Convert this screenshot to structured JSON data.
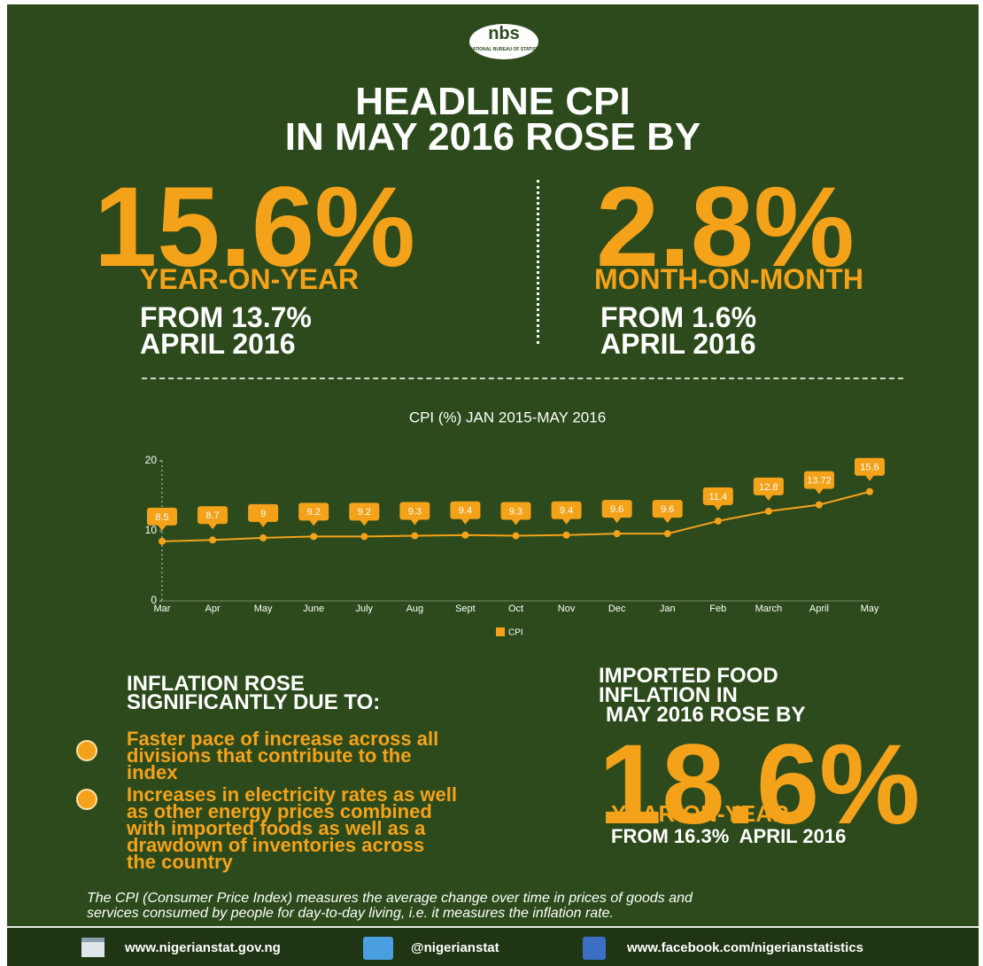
{
  "logo": {
    "mark": "nbs",
    "name": "NATIONAL BUREAU OF STATISTICS"
  },
  "headline": [
    "HEADLINE CPI",
    "IN MAY 2016 ROSE BY"
  ],
  "stats": [
    {
      "value": "15.6%",
      "label": "YEAR-ON-YEAR",
      "from": [
        "FROM 13.7%",
        "APRIL 2016"
      ]
    },
    {
      "value": "2.8%",
      "label": "MONTH-ON-MONTH",
      "from": [
        "FROM 1.6%",
        "APRIL 2016"
      ]
    }
  ],
  "chart_data": {
    "type": "line",
    "title": "CPI (%) JAN 2015-MAY 2016",
    "categories": [
      "Mar",
      "Apr",
      "May",
      "June",
      "July",
      "Aug",
      "Sept",
      "Oct",
      "Nov",
      "Dec",
      "Jan",
      "Feb",
      "March",
      "April",
      "May"
    ],
    "series": [
      {
        "name": "CPI",
        "color": "#f5a21b",
        "values": [
          8.5,
          8.7,
          9,
          9.2,
          9.2,
          9.3,
          9.4,
          9.3,
          9.4,
          9.6,
          9.6,
          11.4,
          12.8,
          13.72,
          15.6
        ]
      }
    ],
    "ylim": [
      0,
      20
    ],
    "yticks": [
      0,
      10,
      20
    ],
    "grid": false,
    "legend": "bottom"
  },
  "causes": {
    "heading": [
      "INFLATION ROSE",
      "SIGNIFICANTLY DUE TO:"
    ],
    "items": [
      [
        "Faster pace of increase across all",
        "divisions that contribute to the",
        "index"
      ],
      [
        "Increases in electricity rates as well",
        "as other energy prices combined",
        "with imported foods as well as a",
        "drawdown of inventories across",
        "the country"
      ]
    ]
  },
  "food": {
    "heading": [
      "IMPORTED FOOD",
      "INFLATION IN",
      "MAY 2016 ROSE BY"
    ],
    "value": "18.6%",
    "label": "YEAR-ON-YEAR",
    "from": "FROM 16.3%  APRIL 2016"
  },
  "note": [
    "The CPI (Consumer Price Index) measures the average change over time in prices of goods and",
    "services consumed by people for day-to-day living, i.e. it measures the inflation rate."
  ],
  "footer": [
    "www.nigerianstat.gov.ng",
    "@nigerianstat",
    "www.facebook.com/nigerianstatistics"
  ]
}
